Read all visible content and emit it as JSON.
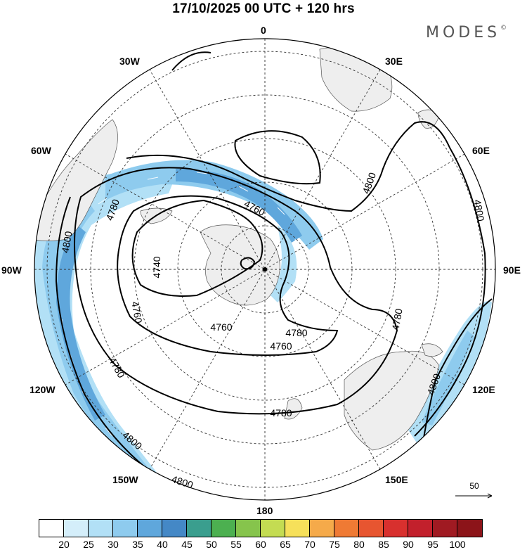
{
  "title": "17/10/2025  00 UTC  + 120 hrs",
  "brand": {
    "name": "MODES",
    "mark": "©"
  },
  "longitude_labels": {
    "lon_0": "0",
    "lon_30e": "30E",
    "lon_60e": "60E",
    "lon_90e": "90E",
    "lon_120e": "120E",
    "lon_150e": "150E",
    "lon_180": "180",
    "lon_150w": "150W",
    "lon_120w": "120W",
    "lon_90w": "90W",
    "lon_60w": "60W",
    "lon_30w": "30W"
  },
  "contour_labels": {
    "c1": "4800",
    "c2": "4780",
    "c3": "4760",
    "c4": "4740",
    "c5": "4760",
    "c6": "4780",
    "c7": "4800",
    "c8": "4800",
    "c9": "4780",
    "c10": "4780",
    "c11": "4760",
    "c12": "4800",
    "c13": "4800",
    "c14": "4780",
    "c15": "4800",
    "c16": "4760"
  },
  "reference_vector": {
    "label": "50"
  },
  "colorbar": {
    "colors": [
      "#ffffff",
      "#d4eefa",
      "#b2e0f6",
      "#8ecbee",
      "#5fa7dc",
      "#4488c6",
      "#3a9e8e",
      "#4cb050",
      "#86c44c",
      "#c4dc52",
      "#f6e05a",
      "#f5aa4a",
      "#ef7a34",
      "#e75530",
      "#d8302e",
      "#c2202c",
      "#a01a22",
      "#8c1419"
    ],
    "tick_labels": [
      "20",
      "25",
      "30",
      "35",
      "40",
      "45",
      "50",
      "55",
      "60",
      "65",
      "70",
      "75",
      "80",
      "85",
      "90",
      "95",
      "100"
    ]
  }
}
